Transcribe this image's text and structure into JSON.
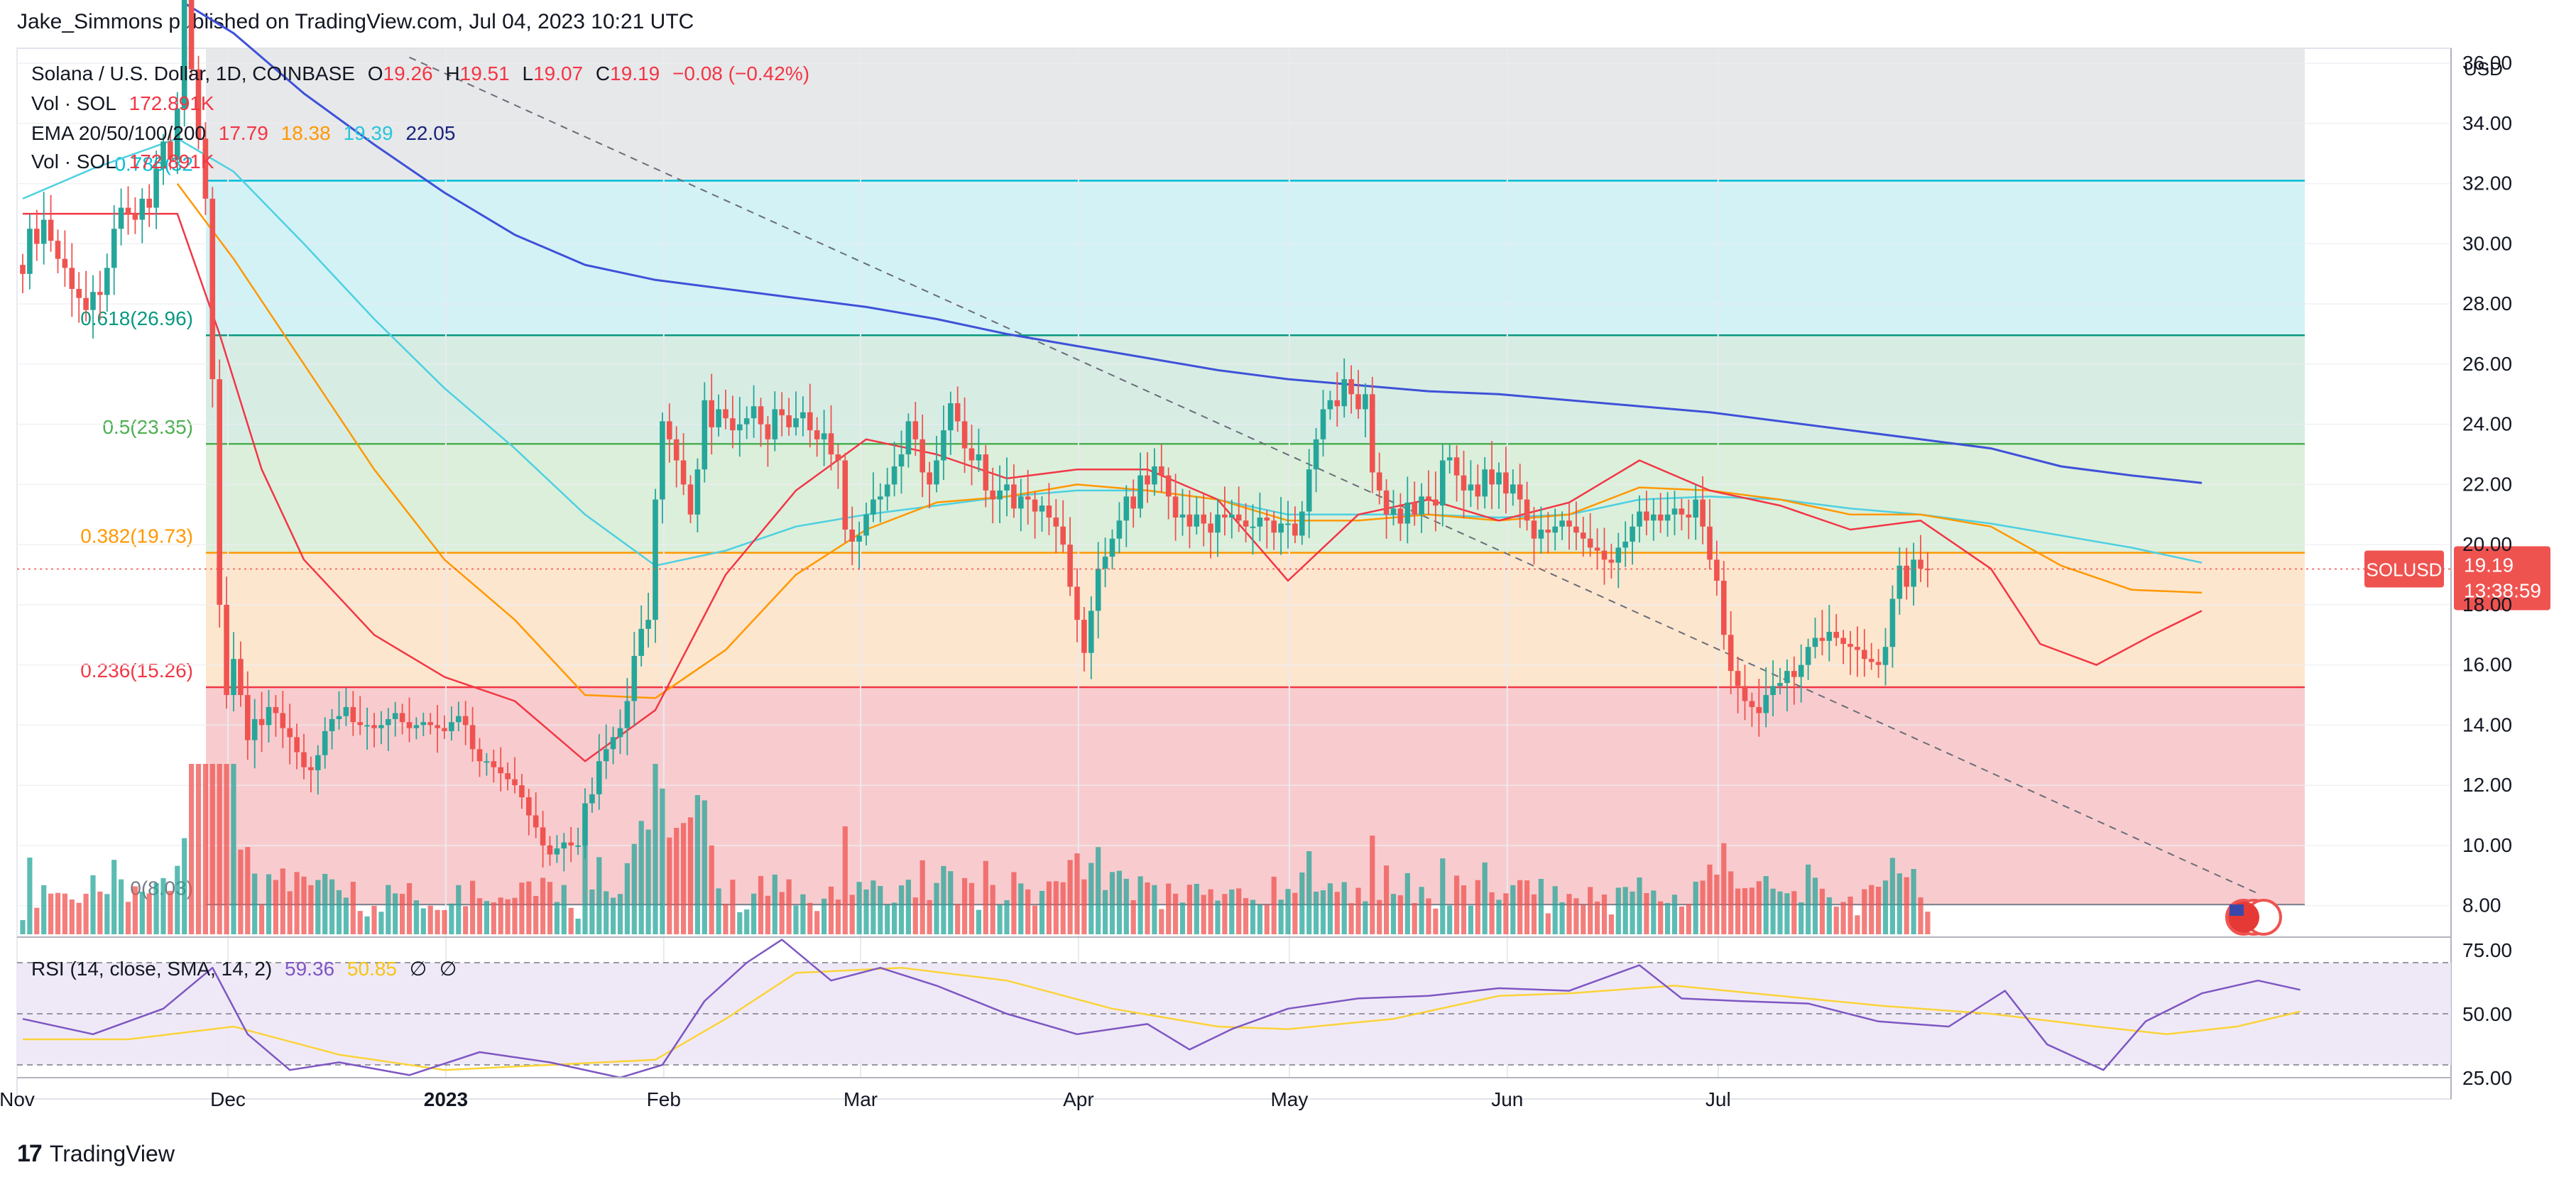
{
  "publisher": "Jake_Simmons published on TradingView.com, Jul 04, 2023 10:21 UTC",
  "footer_brand": "TradingView",
  "colors": {
    "up": "#26a69a",
    "down": "#ef5350",
    "ema20": "#f23645",
    "ema50": "#ff9800",
    "ema100": "#4dd0e1",
    "ema200": "#3f51d8",
    "rsi": "#7e57c2",
    "rsi_sma": "#fbd33a"
  },
  "legend": {
    "symbol": "Solana / U.S. Dollar, 1D, COINBASE",
    "o_label": "O",
    "o": "19.26",
    "h_label": "H",
    "h": "19.51",
    "l_label": "L",
    "l": "19.07",
    "c_label": "C",
    "c": "19.19",
    "chg": "−0.08 (−0.42%)",
    "vol1_label": "Vol · SOL",
    "vol1": "172.891K",
    "ema_label": "EMA 20/50/100/200",
    "ema20": "17.79",
    "ema50": "18.38",
    "ema100": "19.39",
    "ema200": "22.05",
    "vol2_label": "Vol · SOL",
    "vol2": "172.891K"
  },
  "price_badge": {
    "symbol": "SOLUSD",
    "price": "19.19",
    "countdown": "13:38:59"
  },
  "rsi_legend": {
    "label": "RSI (14, close, SMA, 14, 2)",
    "rsi": "59.36",
    "sma": "50.85",
    "na1": "∅",
    "na2": "∅"
  },
  "chart_data": {
    "type": "candlestick",
    "currency": "USD",
    "x_ticks": [
      "Nov",
      "Dec",
      "2023",
      "Feb",
      "Mar",
      "Apr",
      "May",
      "Jun",
      "Jul"
    ],
    "x_tick_days": [
      0,
      30,
      61,
      92,
      120,
      151,
      181,
      212,
      242
    ],
    "y_ticks": [
      "8.00",
      "10.00",
      "12.00",
      "14.00",
      "16.00",
      "18.00",
      "20.00",
      "22.00",
      "24.00",
      "26.00",
      "28.00",
      "30.00",
      "32.00",
      "34.00",
      "36.00"
    ],
    "ylim": [
      8.0,
      36.5
    ],
    "fib_levels": [
      {
        "label": "0(8.03)",
        "value": 8.03,
        "line": "#787b86",
        "fill": "#f7c3c6"
      },
      {
        "label": "0.236(15.26)",
        "value": 15.26,
        "line": "#f23645",
        "fill": "#fde2c5"
      },
      {
        "label": "0.382(19.73)",
        "value": 19.73,
        "line": "#ff9800",
        "fill": "#d6ecd5"
      },
      {
        "label": "0.5(23.35)",
        "value": 23.35,
        "line": "#4caf50",
        "fill": "#d0eadf"
      },
      {
        "label": "0.618(26.96)",
        "value": 26.96,
        "line": "#089981",
        "fill": "#caf0f4"
      },
      {
        "label": "0.786(32",
        "value": 32.1,
        "line": "#00bcd4",
        "fill": "#e3e4e6"
      }
    ],
    "candles_close": [
      29.0,
      30.5,
      30.0,
      30.8,
      30.1,
      29.5,
      29.2,
      28.5,
      28.2,
      27.8,
      28.4,
      28.3,
      29.2,
      30.5,
      31.2,
      31.0,
      30.8,
      31.5,
      31.2,
      32.5,
      33.4,
      32.8,
      34.5,
      38.2,
      35.8,
      33.5,
      31.5,
      25.5,
      18.0,
      15.0,
      16.2,
      15.0,
      13.5,
      14.2,
      14.0,
      14.6,
      14.4,
      13.9,
      13.6,
      13.1,
      12.6,
      12.5,
      13.0,
      13.8,
      14.2,
      14.3,
      14.6,
      14.1,
      14.0,
      14.0,
      13.9,
      14.0,
      14.2,
      14.4,
      14.1,
      13.9,
      14.0,
      14.1,
      14.0,
      13.9,
      13.8,
      14.1,
      14.3,
      14.0,
      13.2,
      12.8,
      12.8,
      12.6,
      12.4,
      12.2,
      12.0,
      11.6,
      11.0,
      10.6,
      10.0,
      9.7,
      9.9,
      10.1,
      10.0,
      10.0,
      11.4,
      11.7,
      12.8,
      13.2,
      13.6,
      13.9,
      14.8,
      16.3,
      17.2,
      17.5,
      21.5,
      24.1,
      23.5,
      22.8,
      22.0,
      21.0,
      22.5,
      24.8,
      23.9,
      24.5,
      24.2,
      23.8,
      24.0,
      24.2,
      24.6,
      24.0,
      23.5,
      24.5,
      24.3,
      23.9,
      24.2,
      24.4,
      23.8,
      23.5,
      23.7,
      23.0,
      22.8,
      20.5,
      20.1,
      20.3,
      21.0,
      21.5,
      21.6,
      22.0,
      22.6,
      23.0,
      24.1,
      23.5,
      22.4,
      22.0,
      22.8,
      23.8,
      24.7,
      24.1,
      23.2,
      22.8,
      23.0,
      21.8,
      21.5,
      21.8,
      22.0,
      21.2,
      21.6,
      21.5,
      21.1,
      21.3,
      20.9,
      20.6,
      20.0,
      18.6,
      17.5,
      16.4,
      17.8,
      19.2,
      19.6,
      20.2,
      20.8,
      21.6,
      21.2,
      22.3,
      22.0,
      22.6,
      22.3,
      21.6,
      20.9,
      21.0,
      20.6,
      21.0,
      20.7,
      20.4,
      21.0,
      20.9,
      21.0,
      20.8,
      20.6,
      20.6,
      20.9,
      20.8,
      20.4,
      20.7,
      20.7,
      20.3,
      21.1,
      22.5,
      23.5,
      24.5,
      24.8,
      24.6,
      25.5,
      25.0,
      24.5,
      25.0,
      22.4,
      21.8,
      21.0,
      21.2,
      20.7,
      21.4,
      21.0,
      21.6,
      21.5,
      21.3,
      22.8,
      22.9,
      22.3,
      21.8,
      22.0,
      21.6,
      22.5,
      22.0,
      22.4,
      21.7,
      22.0,
      21.5,
      20.8,
      20.2,
      20.5,
      20.4,
      20.6,
      20.8,
      20.6,
      20.4,
      20.2,
      19.9,
      19.8,
      19.5,
      19.4,
      19.9,
      20.1,
      20.6,
      21.1,
      20.8,
      21.0,
      20.8,
      21.0,
      21.2,
      21.0,
      20.9,
      21.5,
      20.6,
      19.5,
      18.8,
      17.0,
      15.8,
      15.3,
      14.8,
      14.6,
      14.4,
      15.0,
      15.3,
      15.4,
      15.8,
      15.6,
      16.0,
      16.6,
      16.9,
      16.8,
      17.1,
      16.9,
      16.7,
      16.6,
      16.5,
      16.2,
      16.1,
      16.0,
      16.6,
      18.2,
      19.3,
      18.6,
      19.5,
      19.2,
      19.19
    ],
    "ema20": [
      [
        0,
        31.0
      ],
      [
        22,
        31.0
      ],
      [
        28,
        27.0
      ],
      [
        34,
        22.5
      ],
      [
        40,
        19.5
      ],
      [
        50,
        17.0
      ],
      [
        60,
        15.6
      ],
      [
        70,
        14.8
      ],
      [
        80,
        12.8
      ],
      [
        90,
        14.5
      ],
      [
        100,
        19.0
      ],
      [
        110,
        21.8
      ],
      [
        120,
        23.5
      ],
      [
        130,
        23.0
      ],
      [
        140,
        22.2
      ],
      [
        150,
        22.5
      ],
      [
        160,
        22.5
      ],
      [
        170,
        21.5
      ],
      [
        180,
        18.8
      ],
      [
        190,
        21.0
      ],
      [
        200,
        21.5
      ],
      [
        210,
        20.8
      ],
      [
        220,
        21.4
      ],
      [
        230,
        22.8
      ],
      [
        240,
        21.8
      ],
      [
        250,
        21.3
      ],
      [
        260,
        20.5
      ],
      [
        270,
        20.8
      ],
      [
        280,
        19.2
      ],
      [
        287,
        16.7
      ],
      [
        295,
        16.0
      ],
      [
        303,
        17.0
      ],
      [
        310,
        17.8
      ]
    ],
    "ema50": [
      [
        22,
        32.0
      ],
      [
        30,
        29.5
      ],
      [
        40,
        26.0
      ],
      [
        50,
        22.5
      ],
      [
        60,
        19.5
      ],
      [
        70,
        17.5
      ],
      [
        80,
        15.0
      ],
      [
        90,
        14.9
      ],
      [
        100,
        16.5
      ],
      [
        110,
        19.0
      ],
      [
        120,
        20.5
      ],
      [
        130,
        21.4
      ],
      [
        140,
        21.6
      ],
      [
        150,
        22.0
      ],
      [
        160,
        21.8
      ],
      [
        170,
        21.5
      ],
      [
        180,
        20.8
      ],
      [
        190,
        20.8
      ],
      [
        200,
        21.0
      ],
      [
        210,
        20.8
      ],
      [
        220,
        21.0
      ],
      [
        230,
        21.9
      ],
      [
        240,
        21.8
      ],
      [
        250,
        21.5
      ],
      [
        260,
        21.0
      ],
      [
        270,
        21.0
      ],
      [
        280,
        20.6
      ],
      [
        290,
        19.3
      ],
      [
        300,
        18.5
      ],
      [
        310,
        18.4
      ]
    ],
    "ema100": [
      [
        0,
        31.5
      ],
      [
        10,
        32.5
      ],
      [
        22,
        33.5
      ],
      [
        30,
        32.4
      ],
      [
        40,
        30.0
      ],
      [
        50,
        27.5
      ],
      [
        60,
        25.2
      ],
      [
        70,
        23.2
      ],
      [
        80,
        21.0
      ],
      [
        90,
        19.3
      ],
      [
        100,
        19.8
      ],
      [
        110,
        20.6
      ],
      [
        120,
        21.0
      ],
      [
        130,
        21.3
      ],
      [
        140,
        21.6
      ],
      [
        150,
        21.8
      ],
      [
        160,
        21.8
      ],
      [
        170,
        21.5
      ],
      [
        180,
        21.0
      ],
      [
        190,
        21.0
      ],
      [
        200,
        21.0
      ],
      [
        210,
        20.9
      ],
      [
        220,
        21.0
      ],
      [
        230,
        21.5
      ],
      [
        240,
        21.6
      ],
      [
        250,
        21.5
      ],
      [
        260,
        21.2
      ],
      [
        270,
        21.0
      ],
      [
        280,
        20.7
      ],
      [
        290,
        20.3
      ],
      [
        300,
        19.9
      ],
      [
        310,
        19.4
      ]
    ],
    "ema200": [
      [
        23,
        38.0
      ],
      [
        30,
        37.0
      ],
      [
        40,
        35.0
      ],
      [
        50,
        33.3
      ],
      [
        60,
        31.7
      ],
      [
        70,
        30.3
      ],
      [
        80,
        29.3
      ],
      [
        90,
        28.8
      ],
      [
        100,
        28.5
      ],
      [
        110,
        28.2
      ],
      [
        120,
        27.9
      ],
      [
        130,
        27.5
      ],
      [
        140,
        27.0
      ],
      [
        150,
        26.6
      ],
      [
        160,
        26.2
      ],
      [
        170,
        25.8
      ],
      [
        180,
        25.5
      ],
      [
        190,
        25.3
      ],
      [
        200,
        25.1
      ],
      [
        210,
        25.0
      ],
      [
        220,
        24.8
      ],
      [
        230,
        24.6
      ],
      [
        240,
        24.4
      ],
      [
        250,
        24.1
      ],
      [
        260,
        23.8
      ],
      [
        270,
        23.5
      ],
      [
        280,
        23.2
      ],
      [
        290,
        22.6
      ],
      [
        300,
        22.3
      ],
      [
        310,
        22.05
      ]
    ],
    "trendline": {
      "style": "dashed",
      "points": [
        [
          55,
          36.2
        ],
        [
          318,
          8.4
        ]
      ]
    },
    "rsi": {
      "ylim": [
        25,
        80
      ],
      "y_ticks": [
        "25.00",
        "50.00",
        "75.00"
      ],
      "bands": [
        30,
        50,
        70
      ],
      "rsi_points": [
        [
          0,
          48
        ],
        [
          10,
          42
        ],
        [
          20,
          52
        ],
        [
          27,
          68
        ],
        [
          32,
          42
        ],
        [
          38,
          28
        ],
        [
          45,
          31
        ],
        [
          55,
          26
        ],
        [
          65,
          35
        ],
        [
          75,
          31
        ],
        [
          85,
          25
        ],
        [
          91,
          30
        ],
        [
          97,
          55
        ],
        [
          103,
          70
        ],
        [
          108,
          79
        ],
        [
          115,
          63
        ],
        [
          122,
          68
        ],
        [
          130,
          61
        ],
        [
          140,
          50
        ],
        [
          150,
          42
        ],
        [
          160,
          46
        ],
        [
          166,
          36
        ],
        [
          172,
          44
        ],
        [
          180,
          52
        ],
        [
          190,
          56
        ],
        [
          200,
          57
        ],
        [
          210,
          60
        ],
        [
          220,
          59
        ],
        [
          230,
          69
        ],
        [
          236,
          56
        ],
        [
          244,
          55
        ],
        [
          254,
          54
        ],
        [
          264,
          47
        ],
        [
          274,
          45
        ],
        [
          282,
          59
        ],
        [
          288,
          38
        ],
        [
          296,
          28
        ],
        [
          302,
          47
        ],
        [
          310,
          58
        ],
        [
          318,
          63
        ],
        [
          324,
          59.36
        ]
      ],
      "sma_points": [
        [
          0,
          40
        ],
        [
          15,
          40
        ],
        [
          30,
          45
        ],
        [
          45,
          34
        ],
        [
          60,
          28
        ],
        [
          75,
          30
        ],
        [
          90,
          32
        ],
        [
          100,
          48
        ],
        [
          110,
          66
        ],
        [
          125,
          68
        ],
        [
          140,
          63
        ],
        [
          155,
          52
        ],
        [
          170,
          45
        ],
        [
          180,
          44
        ],
        [
          195,
          48
        ],
        [
          210,
          57
        ],
        [
          220,
          58
        ],
        [
          235,
          61
        ],
        [
          250,
          57
        ],
        [
          265,
          53
        ],
        [
          280,
          50
        ],
        [
          295,
          45
        ],
        [
          305,
          42
        ],
        [
          315,
          45
        ],
        [
          324,
          50.85
        ]
      ]
    },
    "volume_scale_max": 1.0
  }
}
